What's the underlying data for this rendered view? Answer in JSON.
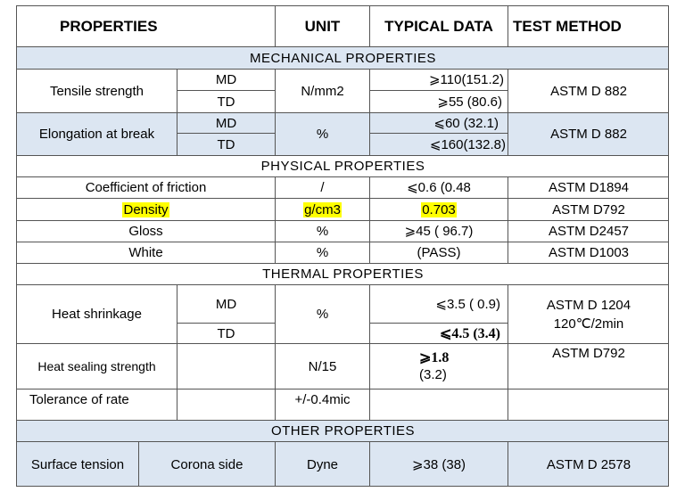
{
  "header": {
    "properties": "PROPERTIES",
    "unit": "UNIT",
    "typical": "TYPICAL DATA",
    "method": "TEST METHOD"
  },
  "sections": {
    "mechanical": "MECHANICAL PROPERTIES",
    "physical": "PHYSICAL PROPERTIES",
    "thermal": "THERMAL PROPERTIES",
    "other": "OTHER PROPERTIES"
  },
  "tensile": {
    "name": "Tensile strength",
    "md": "MD",
    "td": "TD",
    "unit": "N/mm2",
    "md_val": "⩾110(151.2)",
    "td_val": "⩾55 (80.6)",
    "method": "ASTM D 882"
  },
  "elongation": {
    "name": "Elongation at break",
    "md": "MD",
    "td": "TD",
    "unit": "%",
    "md_val": "⩽60 (32.1)",
    "td_val": "⩽160(132.8)",
    "method": "ASTM D 882"
  },
  "physical_rows": [
    {
      "name": "Coefficient of friction",
      "unit": "/",
      "val": "⩽0.6 (0.48",
      "method": "ASTM D1894"
    },
    {
      "name": "Density",
      "unit": "g/cm3",
      "val": "0.703",
      "method": "ASTM D792"
    },
    {
      "name": "Gloss",
      "unit": "%",
      "val": "⩾45 ( 96.7)",
      "method": "ASTM D2457"
    },
    {
      "name": "White",
      "unit": "%",
      "val": "(PASS)",
      "method": "ASTM D1003"
    }
  ],
  "shrinkage": {
    "name": "Heat shrinkage",
    "md": "MD",
    "td": "TD",
    "unit": "%",
    "md_val": "⩽3.5 ( 0.9)",
    "td_val": "⩽4.5 (3.4)",
    "method_line1": "ASTM D 1204",
    "method_line2": "120℃/2min"
  },
  "sealing": {
    "name": "Heat sealing strength",
    "unit": "N/15",
    "val_line1": "⩾1.8",
    "val_line2": "(3.2)",
    "method": "ASTM D792"
  },
  "tolerance": {
    "name": "Tolerance of rate",
    "unit": "+/-0.4mic"
  },
  "surface": {
    "name": "Surface tension",
    "side": "Corona side",
    "unit": "Dyne",
    "val": "⩾38 (38)",
    "method": "ASTM D 2578"
  },
  "colors": {
    "section_fill": "#dce6f2",
    "highlight": "#ffff00",
    "border": "#555555"
  }
}
